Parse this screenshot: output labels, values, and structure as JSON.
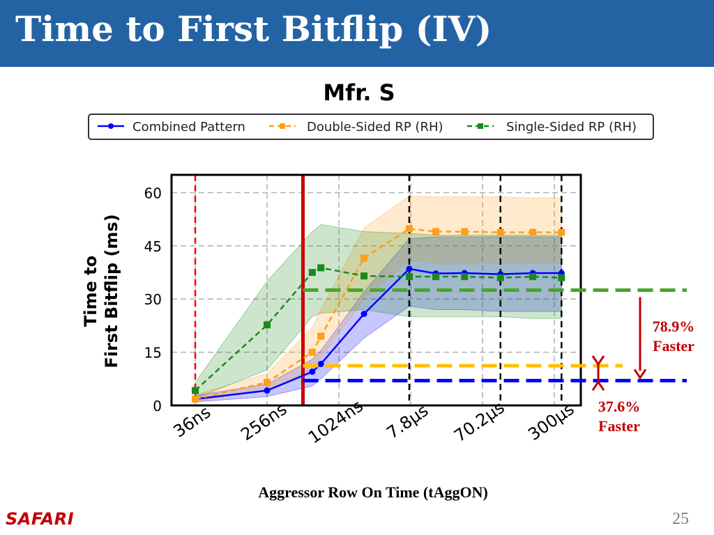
{
  "slide": {
    "title": "Time to First Bitflip (IV)",
    "logo": "SAFARI",
    "page_number": "25"
  },
  "chart_data": {
    "type": "line",
    "title": "Mfr. S",
    "xlabel": "Aggressor Row On Time (tAggON)",
    "ylabel": "Time to\nFirst Bitflip (ms)",
    "ylim": [
      0,
      65
    ],
    "yticks": [
      0,
      15,
      30,
      45,
      60
    ],
    "xticks": [
      "36ns",
      "256ns",
      "1024ns",
      "7.8µs",
      "70.2µs",
      "300µs"
    ],
    "grid": true,
    "legend_position": "top",
    "series": [
      {
        "name": "Combined Pattern",
        "color": "#0000ff",
        "marker": "circle",
        "linestyle": "solid",
        "points": [
          [
            0,
            1.8
          ],
          [
            1,
            4.2
          ],
          [
            1.63,
            9.5
          ],
          [
            1.75,
            11.7
          ],
          [
            2.35,
            25.8
          ],
          [
            2.98,
            38.5
          ],
          [
            3.35,
            37.2
          ],
          [
            3.75,
            37.3
          ],
          [
            4.25,
            37.0
          ],
          [
            4.7,
            37.3
          ],
          [
            5.1,
            37.3
          ]
        ],
        "band_lower": [
          1.0,
          2.5,
          5.5,
          7.5,
          19.0,
          28.0,
          27.0,
          27.0,
          26.5,
          26.5,
          26.5
        ],
        "band_upper": [
          2.8,
          6.0,
          13.0,
          15.5,
          32.0,
          47.0,
          47.5,
          47.5,
          47.5,
          47.5,
          47.5
        ]
      },
      {
        "name": "Double-Sided RP (RH)",
        "color": "#ff9e1b",
        "marker": "square",
        "linestyle": "dashed",
        "points": [
          [
            0,
            1.8
          ],
          [
            1,
            6.5
          ],
          [
            1.63,
            15.0
          ],
          [
            1.75,
            19.5
          ],
          [
            2.35,
            41.5
          ],
          [
            2.98,
            49.8
          ],
          [
            3.35,
            49.0
          ],
          [
            3.75,
            49.0
          ],
          [
            4.25,
            48.8
          ],
          [
            4.7,
            48.8
          ],
          [
            5.1,
            48.8
          ]
        ],
        "band_lower": [
          1.0,
          4.5,
          10.0,
          13.5,
          30.0,
          41.0,
          40.0,
          40.0,
          40.0,
          40.0,
          40.0
        ],
        "band_upper": [
          3.0,
          9.0,
          22.0,
          27.0,
          50.0,
          59.0,
          58.8,
          58.8,
          58.8,
          58.5,
          58.5
        ]
      },
      {
        "name": "Single-Sided RP (RH)",
        "color": "#1a8a1a",
        "marker": "square",
        "linestyle": "dashed",
        "points": [
          [
            0,
            4.2
          ],
          [
            1,
            22.7
          ],
          [
            1.63,
            37.5
          ],
          [
            1.75,
            38.8
          ],
          [
            2.35,
            36.5
          ],
          [
            2.98,
            36.3
          ],
          [
            3.35,
            36.3
          ],
          [
            3.75,
            36.3
          ],
          [
            4.25,
            36.0
          ],
          [
            4.7,
            36.3
          ],
          [
            5.1,
            36.0
          ]
        ],
        "band_lower": [
          2.0,
          10.0,
          25.0,
          26.0,
          27.0,
          25.0,
          25.0,
          25.0,
          25.0,
          24.5,
          24.5
        ],
        "band_upper": [
          6.5,
          35.0,
          49.0,
          51.0,
          49.0,
          48.5,
          48.0,
          48.0,
          48.0,
          48.0,
          48.0
        ]
      }
    ],
    "vertical_markers": [
      {
        "x": 0,
        "color": "#ff0000",
        "style": "dashed"
      },
      {
        "x": 1.5,
        "color": "#cc0000",
        "style": "solid-thick"
      },
      {
        "x": 2.98,
        "color": "#000000",
        "style": "dashed"
      },
      {
        "x": 4.25,
        "color": "#000000",
        "style": "dashed"
      },
      {
        "x": 5.1,
        "color": "#000000",
        "style": "dashed"
      }
    ],
    "reference_lines": [
      {
        "y": 32.5,
        "color": "#4aa52a",
        "x_start": 1.5
      },
      {
        "y": 11.2,
        "color": "#ffc000",
        "x_start": 1.5
      },
      {
        "y": 7.0,
        "color": "#0000ff",
        "x_start": 1.5
      }
    ],
    "annotations": [
      {
        "text_lines": [
          "78.9%",
          "Faster"
        ],
        "color": "#c00000"
      },
      {
        "text_lines": [
          "37.6%",
          "Faster"
        ],
        "color": "#c00000"
      }
    ]
  }
}
